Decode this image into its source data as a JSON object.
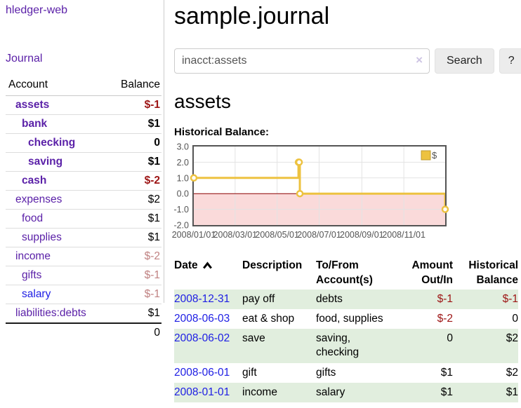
{
  "app": {
    "brand": "hledger-web",
    "nav_journal": "Journal"
  },
  "sidebar": {
    "headers": {
      "account": "Account",
      "balance": "Balance"
    },
    "accounts": [
      {
        "name": "assets",
        "balance": "$-1"
      },
      {
        "name": "bank",
        "balance": "$1"
      },
      {
        "name": "checking",
        "balance": "0"
      },
      {
        "name": "saving",
        "balance": "$1"
      },
      {
        "name": "cash",
        "balance": "$-2"
      },
      {
        "name": "expenses",
        "balance": "$2"
      },
      {
        "name": "food",
        "balance": "$1"
      },
      {
        "name": "supplies",
        "balance": "$1"
      },
      {
        "name": "income",
        "balance": "$-2"
      },
      {
        "name": "gifts",
        "balance": "$-1"
      },
      {
        "name": "salary",
        "balance": "$-1"
      },
      {
        "name": "liabilities:debts",
        "balance": "$1"
      }
    ],
    "total": "0"
  },
  "main": {
    "title": "sample.journal",
    "search": {
      "value": "inacct:assets",
      "clear": "×",
      "search_button": "Search",
      "help_button": "?"
    },
    "account_title": "assets",
    "chart_label": "Historical Balance:"
  },
  "chart_data": {
    "type": "line",
    "title": "Historical Balance:",
    "x_range": [
      "2008-01-01",
      "2008-12-31"
    ],
    "ylim": [
      -2,
      3
    ],
    "series": [
      {
        "name": "$",
        "color": "#edc240",
        "steps": true,
        "points": [
          [
            "2008-01-01",
            1
          ],
          [
            "2008-06-01",
            2
          ],
          [
            "2008-06-02",
            2
          ],
          [
            "2008-06-03",
            0
          ],
          [
            "2008-12-31",
            -1
          ]
        ]
      }
    ],
    "y_ticks": [
      {
        "label": "3.0",
        "value": 3
      },
      {
        "label": "2.0",
        "value": 2
      },
      {
        "label": "1.0",
        "value": 1
      },
      {
        "label": "0.0",
        "value": 0
      },
      {
        "label": "-1.0",
        "value": -1
      },
      {
        "label": "-2.0",
        "value": -2
      }
    ],
    "x_ticks": [
      {
        "label": "2008/01/01",
        "date": "2008-01-01"
      },
      {
        "label": "2008/03/01",
        "date": "2008-03-01"
      },
      {
        "label": "2008/05/01",
        "date": "2008-05-01"
      },
      {
        "label": "2008/07/01",
        "date": "2008-07-01"
      },
      {
        "label": "2008/09/01",
        "date": "2008-09-01"
      },
      {
        "label": "2008/11/01",
        "date": "2008-11-01"
      }
    ],
    "legend": {
      "label": "$",
      "position": "top-right"
    },
    "grid": true,
    "zero_line_color": "#8b0000",
    "negative_region_fill": "#fadada"
  },
  "register": {
    "headers": {
      "date": "Date",
      "description": "Description",
      "tofrom": "To/From Account(s)",
      "amount": "Amount Out/In",
      "balance": "Historical Balance"
    },
    "rows": [
      {
        "date": "2008-12-31",
        "description": "pay off",
        "accounts": "debts",
        "amount": "$-1",
        "balance": "$-1"
      },
      {
        "date": "2008-06-03",
        "description": "eat & shop",
        "accounts": "food, supplies",
        "amount": "$-2",
        "balance": "0"
      },
      {
        "date": "2008-06-02",
        "description": "save",
        "accounts": "saving,\nchecking",
        "amount": "0",
        "balance": "$2"
      },
      {
        "date": "2008-06-01",
        "description": "gift",
        "accounts": "gifts",
        "amount": "$1",
        "balance": "$2"
      },
      {
        "date": "2008-01-01",
        "description": "income",
        "accounts": "salary",
        "amount": "$1",
        "balance": "$1"
      }
    ]
  }
}
